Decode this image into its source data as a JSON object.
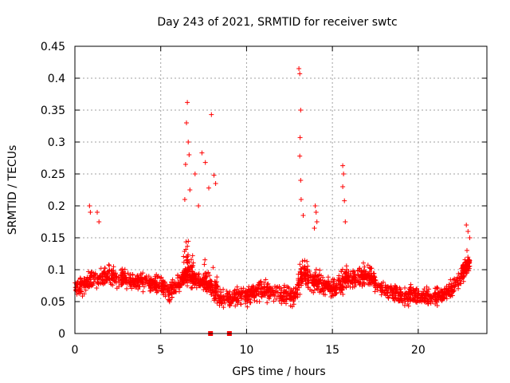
{
  "chart_data": {
    "type": "scatter",
    "title": "Day 243 of 2021, SRMTID for receiver swtc",
    "xlabel": "GPS time / hours",
    "ylabel": "SRMTID / TECUs",
    "xlim": [
      0,
      24
    ],
    "ylim": [
      0,
      0.45
    ],
    "xticks": [
      0,
      5,
      10,
      15,
      20
    ],
    "xtick_labels": [
      "0",
      "5",
      "10",
      "15",
      "20"
    ],
    "yticks": [
      0,
      0.05,
      0.1,
      0.15,
      0.2,
      0.25,
      0.3,
      0.35,
      0.4,
      0.45
    ],
    "ytick_labels": [
      "0",
      "0.05",
      "0.1",
      "0.15",
      "0.2",
      "0.25",
      "0.3",
      "0.35",
      "0.4",
      "0.45"
    ],
    "grid": true,
    "marker": "plus",
    "series_color": "#ff0000",
    "x_range": [
      0,
      23
    ],
    "seed": 7,
    "baseline": [
      [
        0,
        0.07
      ],
      [
        1,
        0.085
      ],
      [
        2,
        0.09
      ],
      [
        3,
        0.085
      ],
      [
        4,
        0.08
      ],
      [
        5,
        0.075
      ],
      [
        5.5,
        0.065
      ],
      [
        6.5,
        0.09
      ],
      [
        7.5,
        0.08
      ],
      [
        8.5,
        0.055
      ],
      [
        10,
        0.06
      ],
      [
        11,
        0.07
      ],
      [
        12,
        0.06
      ],
      [
        12.8,
        0.06
      ],
      [
        13.3,
        0.09
      ],
      [
        14,
        0.08
      ],
      [
        15,
        0.07
      ],
      [
        16,
        0.085
      ],
      [
        17,
        0.09
      ],
      [
        18,
        0.07
      ],
      [
        19,
        0.06
      ],
      [
        20,
        0.06
      ],
      [
        21,
        0.055
      ],
      [
        22,
        0.07
      ],
      [
        23,
        0.11
      ]
    ],
    "spikes": [
      {
        "x": 6.55,
        "y": 0.362
      },
      {
        "x": 6.5,
        "y": 0.33
      },
      {
        "x": 6.6,
        "y": 0.3
      },
      {
        "x": 6.65,
        "y": 0.28
      },
      {
        "x": 6.45,
        "y": 0.265
      },
      {
        "x": 6.7,
        "y": 0.225
      },
      {
        "x": 6.4,
        "y": 0.21
      },
      {
        "x": 7.0,
        "y": 0.25
      },
      {
        "x": 7.4,
        "y": 0.283
      },
      {
        "x": 7.6,
        "y": 0.268
      },
      {
        "x": 7.95,
        "y": 0.343
      },
      {
        "x": 8.1,
        "y": 0.248
      },
      {
        "x": 8.2,
        "y": 0.235
      },
      {
        "x": 7.8,
        "y": 0.228
      },
      {
        "x": 7.2,
        "y": 0.2
      },
      {
        "x": 13.05,
        "y": 0.415
      },
      {
        "x": 13.1,
        "y": 0.407
      },
      {
        "x": 13.15,
        "y": 0.35
      },
      {
        "x": 13.12,
        "y": 0.307
      },
      {
        "x": 13.1,
        "y": 0.278
      },
      {
        "x": 13.15,
        "y": 0.24
      },
      {
        "x": 13.18,
        "y": 0.21
      },
      {
        "x": 13.3,
        "y": 0.185
      },
      {
        "x": 14.0,
        "y": 0.2
      },
      {
        "x": 14.05,
        "y": 0.19
      },
      {
        "x": 14.1,
        "y": 0.175
      },
      {
        "x": 13.95,
        "y": 0.165
      },
      {
        "x": 15.6,
        "y": 0.263
      },
      {
        "x": 15.65,
        "y": 0.25
      },
      {
        "x": 15.6,
        "y": 0.23
      },
      {
        "x": 15.7,
        "y": 0.208
      },
      {
        "x": 15.75,
        "y": 0.175
      },
      {
        "x": 0.85,
        "y": 0.2
      },
      {
        "x": 1.3,
        "y": 0.19
      },
      {
        "x": 1.4,
        "y": 0.175
      },
      {
        "x": 0.9,
        "y": 0.19
      },
      {
        "x": 22.8,
        "y": 0.17
      },
      {
        "x": 22.9,
        "y": 0.16
      },
      {
        "x": 23.0,
        "y": 0.15
      }
    ],
    "bursts": [
      {
        "x0": 6.3,
        "x1": 7.0,
        "amp": 0.09,
        "n": 60
      },
      {
        "x0": 7.4,
        "x1": 8.3,
        "amp": 0.07,
        "n": 45
      },
      {
        "x0": 13.0,
        "x1": 13.6,
        "amp": 0.06,
        "n": 35
      },
      {
        "x0": 14.0,
        "x1": 14.3,
        "amp": 0.05,
        "n": 20
      },
      {
        "x0": 15.5,
        "x1": 16.0,
        "amp": 0.06,
        "n": 25
      },
      {
        "x0": 16.3,
        "x1": 17.5,
        "amp": 0.04,
        "n": 40
      },
      {
        "x0": 22.5,
        "x1": 23.0,
        "amp": 0.05,
        "n": 30
      }
    ],
    "zero_points": [
      {
        "x": 7.9,
        "y": 0.0
      },
      {
        "x": 9.0,
        "y": 0.0
      }
    ],
    "n_background": 1900
  }
}
